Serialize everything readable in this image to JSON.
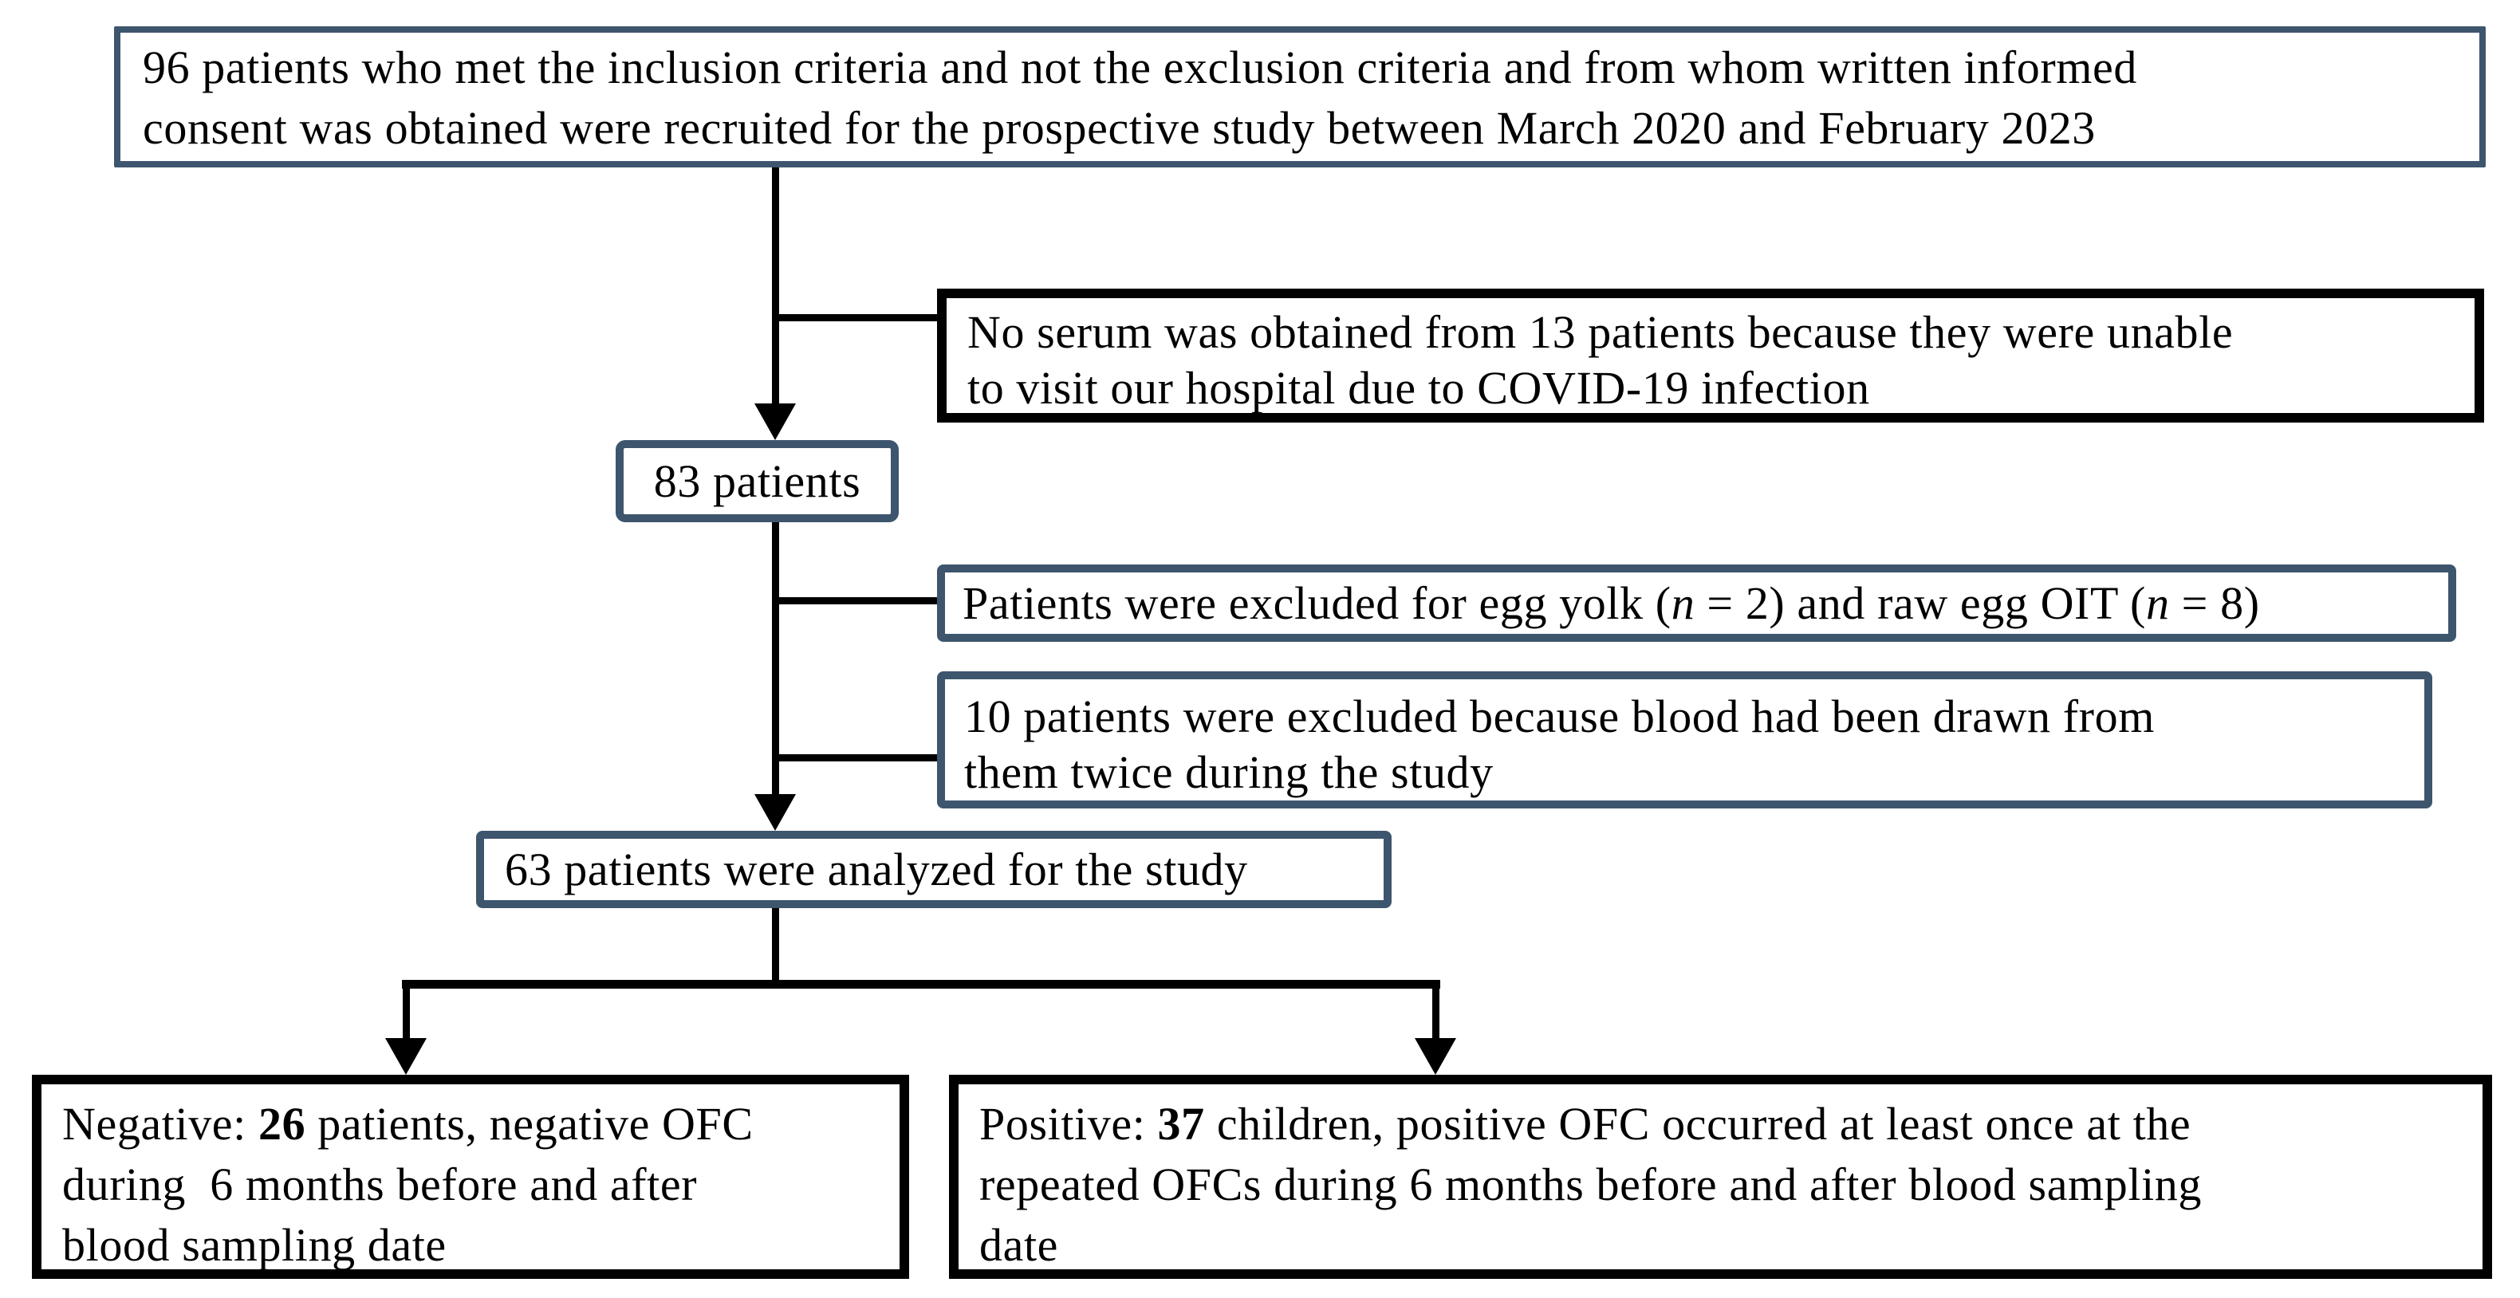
{
  "figure": {
    "kind": "patient-flow-diagram",
    "colors": {
      "accent_border": "#3e556e",
      "black_border": "#000000",
      "background": "#ffffff",
      "text": "#000000"
    }
  },
  "boxes": {
    "recruited": {
      "lines": [
        [
          {
            "t": "96 patients who met the inclusion criteria and not the exclusion criteria and from whom written informed"
          }
        ],
        [
          {
            "t": "consent was obtained were recruited for the prospective study between March 2020 and February 2023"
          }
        ]
      ]
    },
    "no_serum": {
      "lines": [
        [
          {
            "t": "No serum was obtained from 13 patients because they were unable"
          }
        ],
        [
          {
            "t": "to visit our hospital due to COVID-19 infection"
          }
        ]
      ]
    },
    "patients_83": {
      "text": "83 patients"
    },
    "egg_yolk": {
      "lines": [
        [
          {
            "t": "Patients were excluded for egg yolk ("
          },
          {
            "t": "n",
            "s": "i"
          },
          {
            "t": " = 2) and raw egg OIT ("
          },
          {
            "t": "n",
            "s": "i"
          },
          {
            "t": " = 8)"
          }
        ]
      ]
    },
    "twice_blood": {
      "lines": [
        [
          {
            "t": "10 patients were excluded because blood had been drawn from"
          }
        ],
        [
          {
            "t": "them twice during the study"
          }
        ]
      ]
    },
    "analyzed_63": {
      "text": "63 patients were analyzed for the study"
    },
    "negative": {
      "lines": [
        [
          {
            "t": "Negative: "
          },
          {
            "t": "26",
            "s": "b"
          },
          {
            "t": " patients, negative OFC"
          }
        ],
        [
          {
            "t": "during  6 months before and after"
          }
        ],
        [
          {
            "t": "blood sampling date"
          }
        ]
      ]
    },
    "positive": {
      "lines": [
        [
          {
            "t": "Positive: "
          },
          {
            "t": "37",
            "s": "b"
          },
          {
            "t": " children, positive OFC occurred at least once at the"
          }
        ],
        [
          {
            "t": "repeated OFCs during 6 months before and after blood sampling"
          }
        ],
        [
          {
            "t": "date"
          }
        ]
      ]
    }
  }
}
